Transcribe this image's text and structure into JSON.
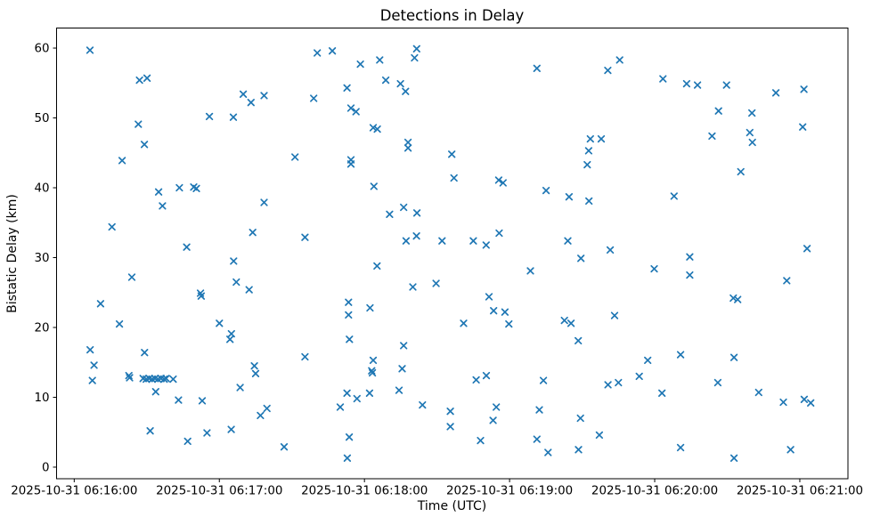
{
  "figure": {
    "title": "Detections in Delay",
    "xlabel": "Time (UTC)",
    "ylabel": "Bistatic Delay (km)"
  },
  "chart_data": {
    "type": "scatter",
    "title": "Detections in Delay",
    "xlabel": "Time (UTC)",
    "ylabel": "Bistatic Delay (km)",
    "marker": "x",
    "marker_color": "#1f77b4",
    "grid": false,
    "legend": "none",
    "x_unit": "seconds after 2025-10-31 06:16:00 UTC",
    "xlim": [
      -7.3,
      319.9
    ],
    "ylim": [
      -1.66,
      62.87
    ],
    "x_ticks": [
      {
        "offset": 0,
        "label": "2025-10-31 06:16:00"
      },
      {
        "offset": 60,
        "label": "2025-10-31 06:17:00"
      },
      {
        "offset": 120,
        "label": "2025-10-31 06:18:00"
      },
      {
        "offset": 180,
        "label": "2025-10-31 06:19:00"
      },
      {
        "offset": 240,
        "label": "2025-10-31 06:20:00"
      },
      {
        "offset": 300,
        "label": "2025-10-31 06:21:00"
      }
    ],
    "y_ticks": [
      0,
      10,
      20,
      30,
      40,
      50,
      60
    ],
    "points": [
      [
        6.5,
        59.7
      ],
      [
        27.0,
        55.4
      ],
      [
        30.1,
        55.7
      ],
      [
        69.9,
        53.4
      ],
      [
        73.1,
        52.2
      ],
      [
        78.5,
        53.2
      ],
      [
        100.5,
        59.3
      ],
      [
        99.0,
        52.8
      ],
      [
        55.9,
        50.2
      ],
      [
        65.8,
        50.1
      ],
      [
        26.5,
        49.1
      ],
      [
        29.0,
        46.2
      ],
      [
        19.8,
        43.9
      ],
      [
        91.3,
        44.4
      ],
      [
        106.7,
        59.6
      ],
      [
        141.6,
        59.9
      ],
      [
        140.7,
        58.6
      ],
      [
        126.3,
        58.3
      ],
      [
        118.3,
        57.7
      ],
      [
        191.3,
        57.1
      ],
      [
        128.8,
        55.4
      ],
      [
        134.9,
        54.9
      ],
      [
        137.0,
        53.8
      ],
      [
        112.8,
        54.3
      ],
      [
        114.4,
        51.4
      ],
      [
        116.5,
        50.9
      ],
      [
        123.6,
        48.6
      ],
      [
        125.3,
        48.4
      ],
      [
        138.0,
        46.5
      ],
      [
        138.0,
        45.7
      ],
      [
        156.1,
        44.8
      ],
      [
        114.4,
        44.0
      ],
      [
        114.4,
        43.4
      ],
      [
        225.5,
        58.3
      ],
      [
        220.6,
        56.8
      ],
      [
        243.4,
        55.6
      ],
      [
        253.2,
        54.9
      ],
      [
        257.7,
        54.7
      ],
      [
        269.7,
        54.7
      ],
      [
        290.1,
        53.6
      ],
      [
        301.7,
        54.1
      ],
      [
        266.4,
        51.0
      ],
      [
        280.2,
        50.7
      ],
      [
        301.2,
        48.7
      ],
      [
        279.3,
        47.9
      ],
      [
        263.7,
        47.4
      ],
      [
        280.4,
        46.5
      ],
      [
        213.4,
        47.0
      ],
      [
        217.9,
        47.0
      ],
      [
        212.7,
        45.3
      ],
      [
        212.1,
        43.3
      ],
      [
        275.6,
        42.3
      ],
      [
        34.9,
        39.4
      ],
      [
        43.5,
        40.0
      ],
      [
        49.4,
        40.1
      ],
      [
        50.5,
        39.9
      ],
      [
        36.5,
        37.4
      ],
      [
        78.5,
        37.9
      ],
      [
        15.6,
        34.4
      ],
      [
        73.8,
        33.6
      ],
      [
        95.4,
        32.9
      ],
      [
        46.5,
        31.5
      ],
      [
        65.9,
        29.5
      ],
      [
        23.8,
        27.2
      ],
      [
        67.0,
        26.5
      ],
      [
        72.3,
        25.4
      ],
      [
        52.2,
        24.9
      ],
      [
        52.5,
        24.5
      ],
      [
        10.9,
        23.4
      ],
      [
        18.7,
        20.5
      ],
      [
        60.0,
        20.6
      ],
      [
        123.9,
        40.2
      ],
      [
        157.0,
        41.4
      ],
      [
        175.5,
        41.1
      ],
      [
        177.3,
        40.7
      ],
      [
        195.1,
        39.6
      ],
      [
        204.6,
        38.7
      ],
      [
        130.4,
        36.2
      ],
      [
        136.2,
        37.2
      ],
      [
        141.7,
        36.4
      ],
      [
        137.2,
        32.4
      ],
      [
        141.5,
        33.1
      ],
      [
        152.1,
        32.4
      ],
      [
        165.0,
        32.4
      ],
      [
        170.3,
        31.8
      ],
      [
        175.7,
        33.5
      ],
      [
        204.1,
        32.4
      ],
      [
        125.2,
        28.8
      ],
      [
        188.6,
        28.1
      ],
      [
        140.0,
        25.8
      ],
      [
        149.6,
        26.3
      ],
      [
        113.4,
        23.6
      ],
      [
        113.4,
        21.8
      ],
      [
        122.3,
        22.8
      ],
      [
        171.5,
        24.4
      ],
      [
        173.4,
        22.4
      ],
      [
        178.1,
        22.2
      ],
      [
        161.0,
        20.6
      ],
      [
        179.7,
        20.5
      ],
      [
        202.7,
        21.0
      ],
      [
        205.4,
        20.6
      ],
      [
        212.8,
        38.1
      ],
      [
        248.0,
        38.8
      ],
      [
        221.6,
        31.1
      ],
      [
        209.5,
        29.9
      ],
      [
        303.0,
        31.3
      ],
      [
        254.5,
        30.1
      ],
      [
        239.8,
        28.4
      ],
      [
        254.5,
        27.5
      ],
      [
        294.6,
        26.7
      ],
      [
        272.5,
        24.2
      ],
      [
        274.3,
        24.0
      ],
      [
        223.4,
        21.7
      ],
      [
        65.0,
        19.1
      ],
      [
        64.4,
        18.3
      ],
      [
        6.6,
        16.8
      ],
      [
        29.1,
        16.4
      ],
      [
        8.2,
        14.6
      ],
      [
        7.5,
        12.4
      ],
      [
        22.6,
        13.1
      ],
      [
        22.9,
        12.8
      ],
      [
        28.5,
        12.7
      ],
      [
        29.8,
        12.6
      ],
      [
        31.0,
        12.7
      ],
      [
        32.2,
        12.6
      ],
      [
        33.4,
        12.7
      ],
      [
        34.6,
        12.6
      ],
      [
        35.9,
        12.7
      ],
      [
        37.2,
        12.6
      ],
      [
        38.0,
        12.7
      ],
      [
        40.9,
        12.6
      ],
      [
        74.5,
        14.5
      ],
      [
        75.0,
        13.4
      ],
      [
        95.4,
        15.8
      ],
      [
        68.6,
        11.4
      ],
      [
        33.7,
        10.8
      ],
      [
        43.1,
        9.6
      ],
      [
        52.9,
        9.5
      ],
      [
        77.0,
        7.4
      ],
      [
        79.7,
        8.4
      ],
      [
        31.4,
        5.2
      ],
      [
        46.9,
        3.7
      ],
      [
        54.9,
        4.9
      ],
      [
        64.9,
        5.4
      ],
      [
        86.8,
        2.9
      ],
      [
        113.8,
        18.3
      ],
      [
        136.2,
        17.4
      ],
      [
        123.6,
        15.3
      ],
      [
        123.0,
        13.8
      ],
      [
        123.3,
        13.5
      ],
      [
        135.6,
        14.1
      ],
      [
        166.2,
        12.5
      ],
      [
        170.4,
        13.1
      ],
      [
        194.0,
        12.4
      ],
      [
        208.4,
        18.1
      ],
      [
        134.3,
        11.0
      ],
      [
        112.8,
        10.6
      ],
      [
        116.9,
        9.8
      ],
      [
        122.1,
        10.6
      ],
      [
        110.0,
        8.6
      ],
      [
        144.0,
        8.9
      ],
      [
        155.5,
        8.0
      ],
      [
        174.5,
        8.6
      ],
      [
        173.2,
        6.7
      ],
      [
        155.5,
        5.8
      ],
      [
        192.3,
        8.2
      ],
      [
        209.3,
        7.0
      ],
      [
        168.0,
        3.8
      ],
      [
        113.7,
        4.3
      ],
      [
        112.9,
        1.3
      ],
      [
        191.3,
        4.0
      ],
      [
        195.9,
        2.1
      ],
      [
        208.5,
        2.5
      ],
      [
        237.1,
        15.3
      ],
      [
        250.7,
        16.1
      ],
      [
        272.8,
        15.7
      ],
      [
        220.7,
        11.8
      ],
      [
        225.0,
        12.1
      ],
      [
        233.6,
        13.0
      ],
      [
        243.0,
        10.6
      ],
      [
        266.1,
        12.1
      ],
      [
        283.0,
        10.7
      ],
      [
        293.2,
        9.3
      ],
      [
        301.8,
        9.7
      ],
      [
        304.5,
        9.2
      ],
      [
        217.1,
        4.6
      ],
      [
        250.7,
        2.8
      ],
      [
        272.8,
        1.3
      ],
      [
        296.2,
        2.5
      ]
    ]
  }
}
